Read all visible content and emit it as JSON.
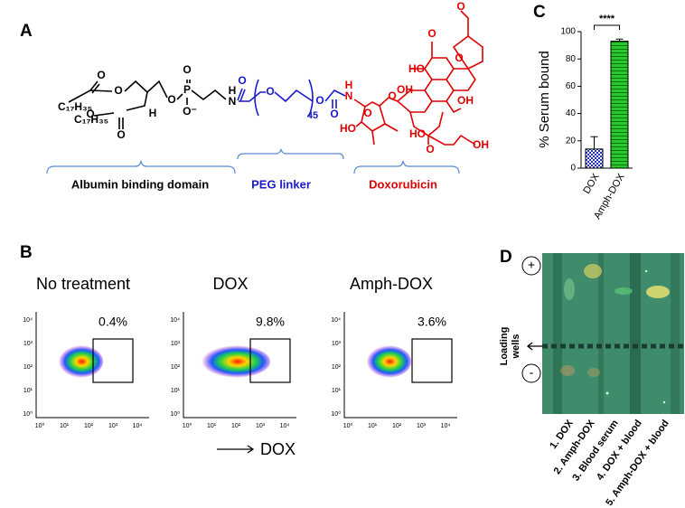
{
  "panels": {
    "A": {
      "label": "A",
      "atoms": [
        "C₁₇H₃₅",
        "C₁₇H₃₅",
        "O",
        "O",
        "O",
        "H",
        "O",
        "O",
        "P",
        "O",
        "O⁻",
        "H",
        "N",
        "O",
        "O",
        "O",
        "45",
        "O",
        "H",
        "N",
        "HO",
        "O",
        "O",
        "HO",
        "O",
        "O",
        "O",
        "OH",
        "OH",
        "HO",
        "O",
        "OH"
      ],
      "domains": [
        "Albumin binding domain",
        "PEG linker",
        "Doxorubicin"
      ]
    },
    "B": {
      "label": "B",
      "plots": [
        {
          "title": "No treatment",
          "gate": "0.4%"
        },
        {
          "title": "DOX",
          "gate": "9.8%"
        },
        {
          "title": "Amph-DOX",
          "gate": "3.6%"
        }
      ],
      "ticks": [
        "10⁰",
        "10¹",
        "10²",
        "10³",
        "10⁴"
      ],
      "axis_label": "DOX"
    },
    "D": {
      "label": "D",
      "plus": "+",
      "minus": "-",
      "wells": [
        "Loading",
        "wells"
      ],
      "lanes": [
        "1. DOX",
        "2. Amph-DOX",
        "3. Blood serum",
        "4. DOX + blood",
        "5. Amph-DOX + blood"
      ]
    }
  },
  "chart_data": {
    "type": "bar",
    "panel_label": "C",
    "ylabel": "% Serum bound",
    "categories": [
      "DOX",
      "Amph-DOX"
    ],
    "values": [
      14,
      93
    ],
    "errors": [
      9,
      1.5
    ],
    "colors": [
      "#2233bb",
      "#22cc22"
    ],
    "ylim": [
      0,
      100
    ],
    "yticks": [
      0,
      20,
      40,
      60,
      80,
      100
    ],
    "annotation": "****"
  }
}
